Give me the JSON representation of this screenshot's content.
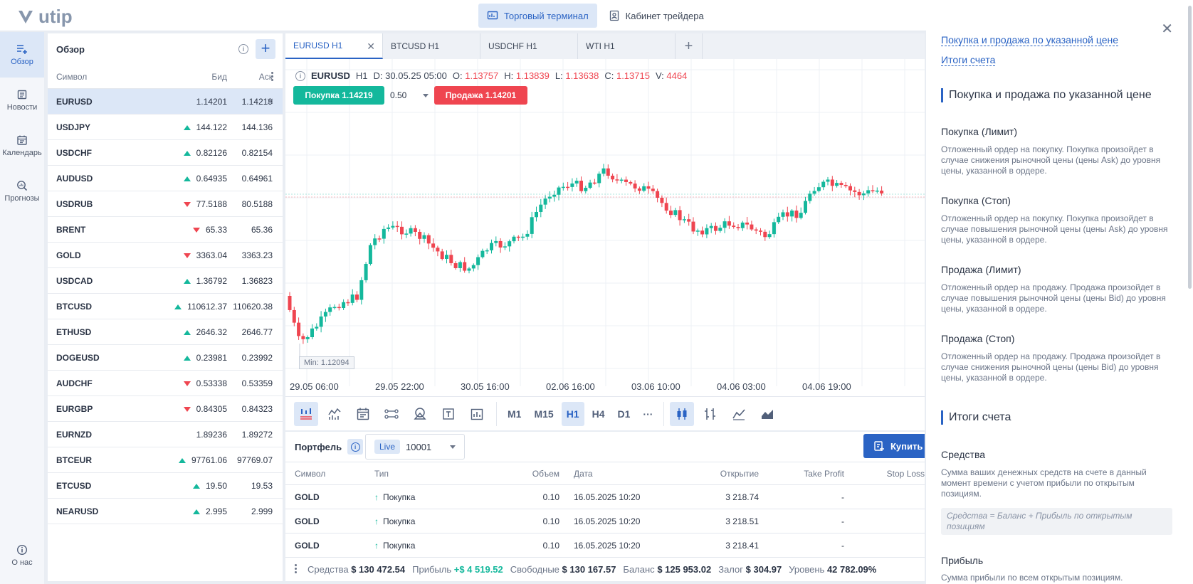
{
  "app": {
    "logo": "utip"
  },
  "topnav": [
    {
      "label": "Торговый терминал"
    },
    {
      "label": "Кабинет трейдера"
    }
  ],
  "sidebar": {
    "items": [
      {
        "label": "Обзор"
      },
      {
        "label": "Новости"
      },
      {
        "label": "Календарь"
      },
      {
        "label": "Прогнозы"
      }
    ],
    "about": "О нас"
  },
  "watchlist": {
    "title": "Обзор",
    "columns": {
      "symbol": "Символ",
      "bid": "Бид",
      "ask": "Аск"
    },
    "rows": [
      {
        "symbol": "EURUSD",
        "bid": "1.14201",
        "ask": "1.14219",
        "dir": ""
      },
      {
        "symbol": "USDJPY",
        "bid": "144.122",
        "ask": "144.136",
        "dir": "up"
      },
      {
        "symbol": "USDCHF",
        "bid": "0.82126",
        "ask": "0.82154",
        "dir": "up"
      },
      {
        "symbol": "AUDUSD",
        "bid": "0.64935",
        "ask": "0.64961",
        "dir": "up"
      },
      {
        "symbol": "USDRUB",
        "bid": "77.5188",
        "ask": "80.5188",
        "dir": "down"
      },
      {
        "symbol": "BRENT",
        "bid": "65.33",
        "ask": "65.36",
        "dir": "down"
      },
      {
        "symbol": "GOLD",
        "bid": "3363.04",
        "ask": "3363.23",
        "dir": "down"
      },
      {
        "symbol": "USDCAD",
        "bid": "1.36792",
        "ask": "1.36823",
        "dir": "up"
      },
      {
        "symbol": "BTCUSD",
        "bid": "110612.37",
        "ask": "110620.38",
        "dir": "up"
      },
      {
        "symbol": "ETHUSD",
        "bid": "2646.32",
        "ask": "2646.77",
        "dir": "up"
      },
      {
        "symbol": "DOGEUSD",
        "bid": "0.23981",
        "ask": "0.23992",
        "dir": "up"
      },
      {
        "symbol": "AUDCHF",
        "bid": "0.53338",
        "ask": "0.53359",
        "dir": "down"
      },
      {
        "symbol": "EURGBP",
        "bid": "0.84305",
        "ask": "0.84323",
        "dir": "down"
      },
      {
        "symbol": "EURNZD",
        "bid": "1.89236",
        "ask": "1.89272",
        "dir": ""
      },
      {
        "symbol": "BTCEUR",
        "bid": "97761.06",
        "ask": "97769.07",
        "dir": "up"
      },
      {
        "symbol": "ETCUSD",
        "bid": "19.50",
        "ask": "19.53",
        "dir": "up"
      },
      {
        "symbol": "NEARUSD",
        "bid": "2.995",
        "ask": "2.999",
        "dir": "up"
      }
    ]
  },
  "chart_tabs": [
    {
      "label": "EURUSD H1"
    },
    {
      "label": "BTCUSD H1"
    },
    {
      "label": "USDCHF H1"
    },
    {
      "label": "WTI H1"
    }
  ],
  "chart": {
    "symbol": "EURUSD",
    "tf": "H1",
    "date": "D: 30.05.25 05:00",
    "o_label": "O:",
    "o": "1.13757",
    "h_label": "H:",
    "h": "1.13839",
    "l_label": "L:",
    "l": "1.13638",
    "c_label": "C:",
    "c": "1.13715",
    "v_label": "V:",
    "v": "4464",
    "buy_label": "Покупка 1.14219",
    "sell_label": "Продажа 1.14201",
    "qty": "0.50",
    "min_label": "Min: 1.12094",
    "x_labels": [
      "29.05 06:00",
      "29.05 22:00",
      "30.05 16:00",
      "02.06 16:00",
      "03.06 10:00",
      "04.06 03:00",
      "04.06 19:00"
    ],
    "timeframes": [
      "M1",
      "M15",
      "H1",
      "H4",
      "D1",
      "···"
    ],
    "colors": {
      "up": "#14b89c",
      "down": "#ef4550"
    }
  },
  "portfolio": {
    "title": "Портфель",
    "live": "Live",
    "account": "10001",
    "buy_button": "Купить",
    "columns": {
      "symbol": "Символ",
      "type": "Тип",
      "volume": "Объем",
      "date": "Дата",
      "open": "Открытие",
      "tp": "Take Profit",
      "sl": "Stop Loss"
    },
    "rows": [
      {
        "symbol": "GOLD",
        "type": "Покупка",
        "volume": "0.10",
        "date": "16.05.2025 10:20",
        "open": "3 218.74",
        "tp": "-"
      },
      {
        "symbol": "GOLD",
        "type": "Покупка",
        "volume": "0.10",
        "date": "16.05.2025 10:20",
        "open": "3 218.51",
        "tp": "-"
      },
      {
        "symbol": "GOLD",
        "type": "Покупка",
        "volume": "0.10",
        "date": "16.05.2025 10:20",
        "open": "3 218.41",
        "tp": "-"
      }
    ],
    "footer": {
      "equity_label": "Средства",
      "equity": "$ 130 472.54",
      "profit_label": "Прибыль",
      "profit": "+$ 4 519.52",
      "free_label": "Свободные",
      "free": "$ 130 167.57",
      "balance_label": "Баланс",
      "balance": "$ 125 953.02",
      "margin_label": "Залог",
      "margin": "$ 304.97",
      "level_label": "Уровень",
      "level": "42 782.09%"
    }
  },
  "help": {
    "link1": "Покупка и продажа по указанной цене",
    "link2": "Итоги счета",
    "h1": "Покупка и продажа по указанной цене",
    "items": [
      {
        "title": "Покупка (Лимит)",
        "text": "Отложенный ордер на покупку. Покупка произойдет в случае снижения рыночной цены (цены Ask) до уровня цены, указанной в ордере."
      },
      {
        "title": "Покупка (Стоп)",
        "text": "Отложенный ордер на покупку. Покупка произойдет в случае повышения рыночной цены (цены Ask) до уровня цены, указанной в ордере."
      },
      {
        "title": "Продажа (Лимит)",
        "text": "Отложенный ордер на продажу. Продажа произойдет в случае повышения рыночной цены (цены Bid) до уровня цены, указанной в ордере."
      },
      {
        "title": "Продажа (Стоп)",
        "text": "Отложенный ордер на продажу. Продажа произойдет в случае снижения рыночной цены (цены Bid) до уровня цены, указанной в ордере."
      }
    ],
    "h2": "Итоги счета",
    "equity_title": "Средства",
    "equity_text": "Сумма ваших денежных средств на счете в данный момент времени с учетом прибыли по открытым позициям.",
    "equity_formula": "Средства = Баланс + Прибыль по открытым позициям",
    "profit_title": "Прибыль",
    "profit_text": "Сумма прибыли по всем открытым позициям."
  }
}
